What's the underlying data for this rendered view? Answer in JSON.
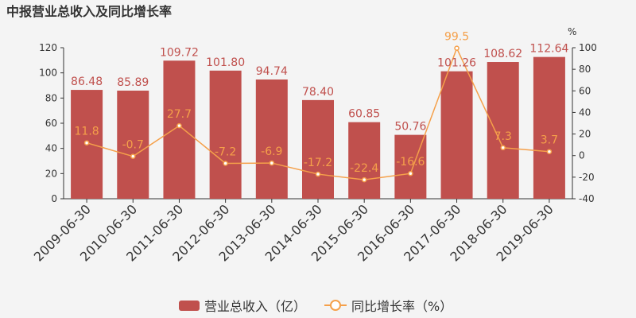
{
  "chart_data": {
    "type": "bar+line",
    "title": "中报营业总收入及同比增长率",
    "categories": [
      "2009-06-30",
      "2010-06-30",
      "2011-06-30",
      "2012-06-30",
      "2013-06-30",
      "2014-06-30",
      "2015-06-30",
      "2016-06-30",
      "2017-06-30",
      "2018-06-30",
      "2019-06-30"
    ],
    "series": [
      {
        "name": "营业总收入（亿）",
        "type": "bar",
        "axis": "left",
        "color": "#c0504d",
        "values": [
          86.48,
          85.89,
          109.72,
          101.8,
          94.74,
          78.4,
          60.85,
          50.76,
          101.26,
          108.62,
          112.64
        ],
        "labels": [
          "86.48",
          "85.89",
          "109.72",
          "101.80",
          "94.74",
          "78.40",
          "60.85",
          "50.76",
          "101.26",
          "108.62",
          "112.64"
        ]
      },
      {
        "name": "同比增长率（%）",
        "type": "line",
        "axis": "right",
        "color": "#f5a04a",
        "values": [
          11.8,
          -0.7,
          27.7,
          -7.2,
          -6.9,
          -17.2,
          -22.4,
          -16.6,
          99.5,
          7.3,
          3.7
        ],
        "labels": [
          "11.8",
          "-0.7",
          "27.7",
          "-7.2",
          "-6.9",
          "-17.2",
          "-22.4",
          "-16.6",
          "99.5",
          "7.3",
          "3.7"
        ]
      }
    ],
    "y_left": {
      "min": 0,
      "max": 120,
      "step": 20,
      "ticks": [
        "0",
        "20",
        "40",
        "60",
        "80",
        "100",
        "120"
      ]
    },
    "y_right": {
      "min": -40,
      "max": 100,
      "step": 20,
      "unit": "%",
      "ticks": [
        "-40",
        "-20",
        "0",
        "20",
        "40",
        "60",
        "80",
        "100"
      ]
    },
    "grid": false,
    "legend_position": "bottom"
  }
}
